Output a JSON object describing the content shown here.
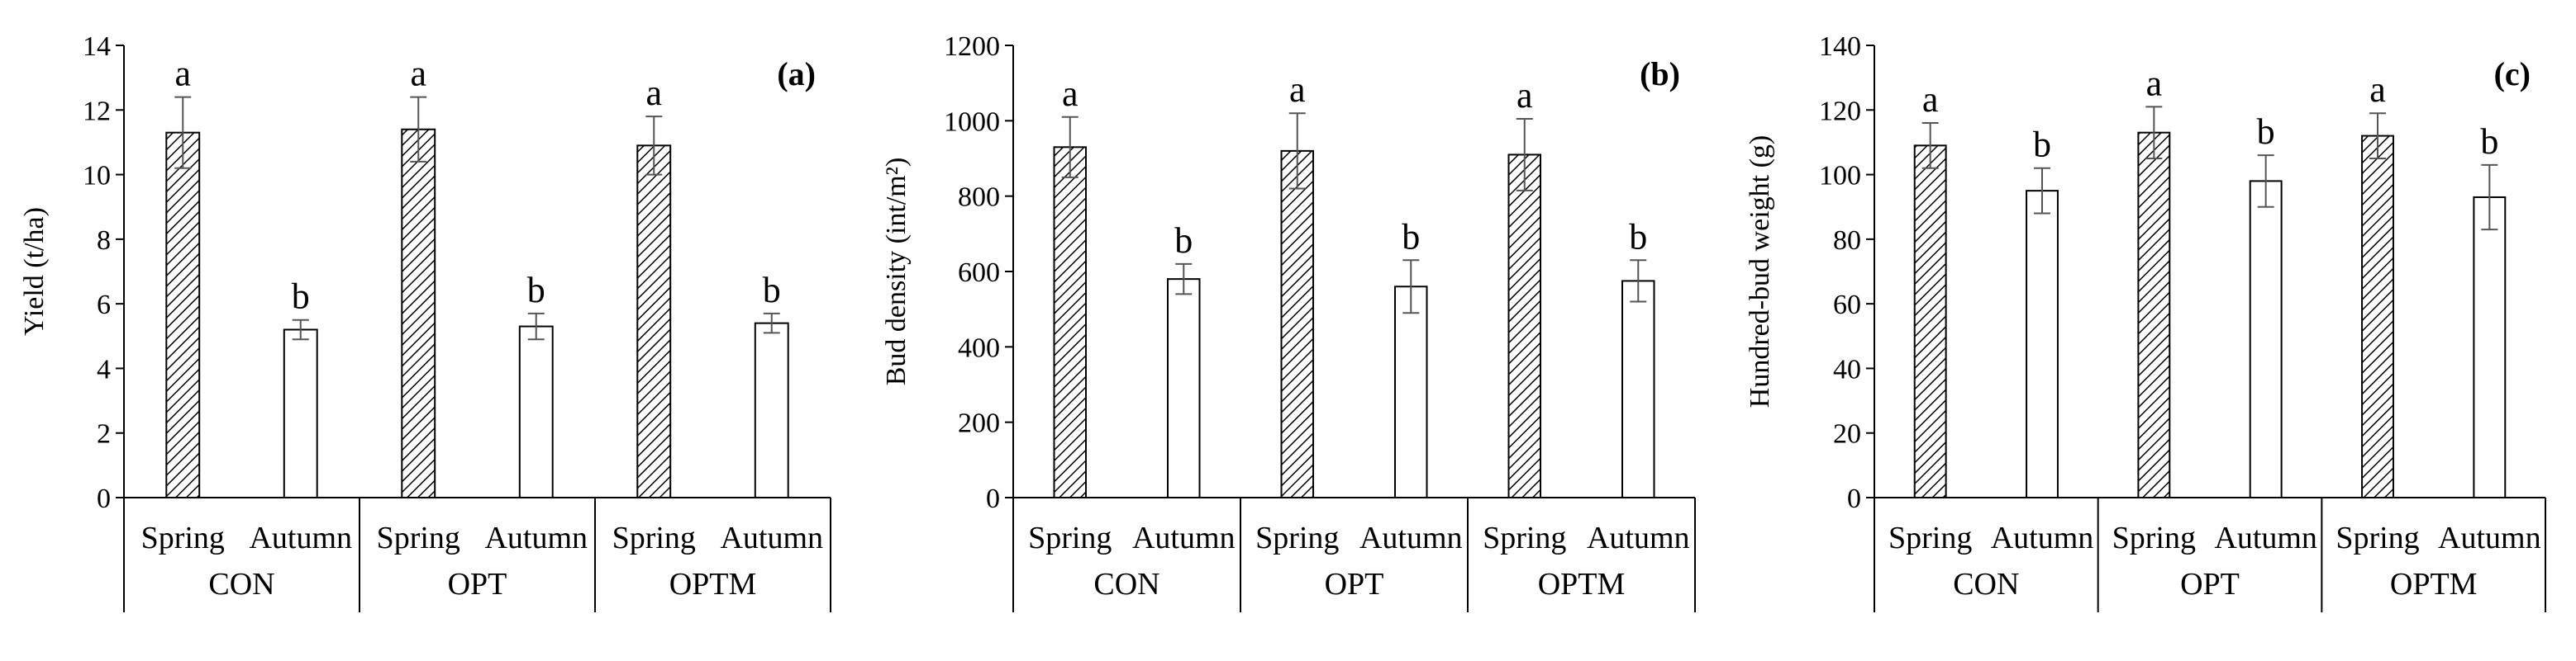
{
  "chart_data": [
    {
      "type": "bar",
      "panel_label": "(a)",
      "ylabel": "Yield (t/ha)",
      "ylim": [
        0,
        14
      ],
      "yticks": [
        0,
        2,
        4,
        6,
        8,
        10,
        12,
        14
      ],
      "groups": [
        "CON",
        "OPT",
        "OPTM"
      ],
      "seasons": [
        "Spring",
        "Autumn"
      ],
      "bars": [
        {
          "group": "CON",
          "season": "Spring",
          "value": 11.3,
          "error": 1.1,
          "sig": "a"
        },
        {
          "group": "CON",
          "season": "Autumn",
          "value": 5.2,
          "error": 0.3,
          "sig": "b"
        },
        {
          "group": "OPT",
          "season": "Spring",
          "value": 11.4,
          "error": 1.0,
          "sig": "a"
        },
        {
          "group": "OPT",
          "season": "Autumn",
          "value": 5.3,
          "error": 0.4,
          "sig": "b"
        },
        {
          "group": "OPTM",
          "season": "Spring",
          "value": 10.9,
          "error": 0.9,
          "sig": "a"
        },
        {
          "group": "OPTM",
          "season": "Autumn",
          "value": 5.4,
          "error": 0.3,
          "sig": "b"
        }
      ]
    },
    {
      "type": "bar",
      "panel_label": "(b)",
      "ylabel": "Bud density (int/m²)",
      "ylim": [
        0,
        1200
      ],
      "yticks": [
        0,
        200,
        400,
        600,
        800,
        1000,
        1200
      ],
      "groups": [
        "CON",
        "OPT",
        "OPTM"
      ],
      "seasons": [
        "Spring",
        "Autumn"
      ],
      "bars": [
        {
          "group": "CON",
          "season": "Spring",
          "value": 930,
          "error": 80,
          "sig": "a"
        },
        {
          "group": "CON",
          "season": "Autumn",
          "value": 580,
          "error": 40,
          "sig": "b"
        },
        {
          "group": "OPT",
          "season": "Spring",
          "value": 920,
          "error": 100,
          "sig": "a"
        },
        {
          "group": "OPT",
          "season": "Autumn",
          "value": 560,
          "error": 70,
          "sig": "b"
        },
        {
          "group": "OPTM",
          "season": "Spring",
          "value": 910,
          "error": 95,
          "sig": "a"
        },
        {
          "group": "OPTM",
          "season": "Autumn",
          "value": 575,
          "error": 55,
          "sig": "b"
        }
      ]
    },
    {
      "type": "bar",
      "panel_label": "(c)",
      "ylabel": "Hundred-bud weight (g)",
      "ylim": [
        0,
        140
      ],
      "yticks": [
        0,
        20,
        40,
        60,
        80,
        100,
        120,
        140
      ],
      "groups": [
        "CON",
        "OPT",
        "OPTM"
      ],
      "seasons": [
        "Spring",
        "Autumn"
      ],
      "bars": [
        {
          "group": "CON",
          "season": "Spring",
          "value": 109,
          "error": 7,
          "sig": "a"
        },
        {
          "group": "CON",
          "season": "Autumn",
          "value": 95,
          "error": 7,
          "sig": "b"
        },
        {
          "group": "OPT",
          "season": "Spring",
          "value": 113,
          "error": 8,
          "sig": "a"
        },
        {
          "group": "OPT",
          "season": "Autumn",
          "value": 98,
          "error": 8,
          "sig": "b"
        },
        {
          "group": "OPTM",
          "season": "Spring",
          "value": 112,
          "error": 7,
          "sig": "a"
        },
        {
          "group": "OPTM",
          "season": "Autumn",
          "value": 93,
          "error": 10,
          "sig": "b"
        }
      ]
    }
  ]
}
